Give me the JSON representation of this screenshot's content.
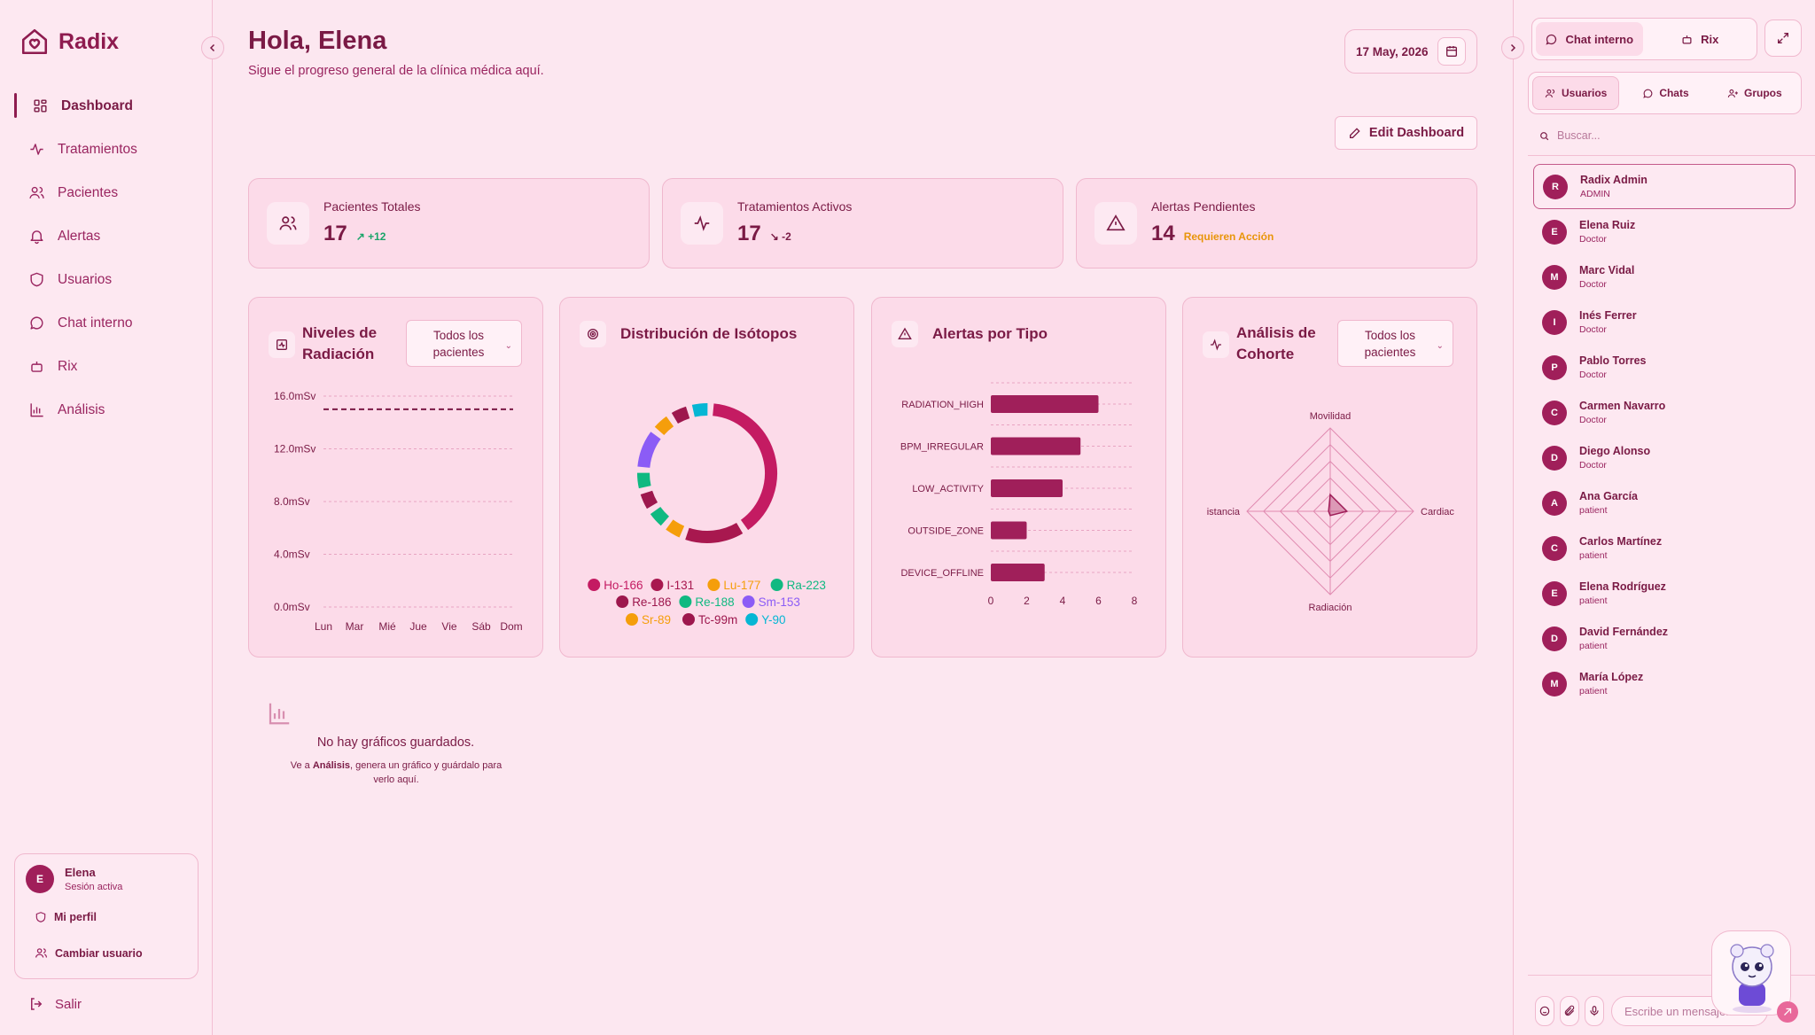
{
  "app": {
    "name": "Radix"
  },
  "nav": [
    {
      "label": "Dashboard",
      "icon": "grid-icon",
      "active": true
    },
    {
      "label": "Tratamientos",
      "icon": "activity-icon"
    },
    {
      "label": "Pacientes",
      "icon": "users-icon"
    },
    {
      "label": "Alertas",
      "icon": "bell-icon"
    },
    {
      "label": "Usuarios",
      "icon": "shield-icon"
    },
    {
      "label": "Chat interno",
      "icon": "chat-icon"
    },
    {
      "label": "Rix",
      "icon": "bot-icon"
    },
    {
      "label": "Análisis",
      "icon": "bar-chart-icon"
    }
  ],
  "session": {
    "initial": "E",
    "name": "Elena",
    "status": "Sesión activa",
    "profile": "Mi perfil",
    "switch": "Cambiar usuario",
    "logout": "Salir"
  },
  "header": {
    "greeting": "Hola, Elena",
    "subtitle": "Sigue el progreso general de la clínica médica aquí.",
    "date": "17 May, 2026",
    "edit": "Edit Dashboard"
  },
  "stats": [
    {
      "label": "Pacientes Totales",
      "value": "17",
      "delta": "+12",
      "delta_color": "#1aa56a"
    },
    {
      "label": "Tratamientos Activos",
      "value": "17",
      "delta": "-2",
      "delta_color": "#7a1a45"
    },
    {
      "label": "Alertas Pendientes",
      "value": "14",
      "delta": "Requieren Acción",
      "delta_color": "#e8950a"
    }
  ],
  "charts": {
    "radiation": {
      "title": "Niveles de Radiación",
      "filter": "Todos los pacientes"
    },
    "isotopes": {
      "title": "Distribución de Isótopos"
    },
    "alerts": {
      "title": "Alertas por Tipo"
    },
    "cohort": {
      "title": "Análisis de Cohorte",
      "filter": "Todos los pacientes"
    }
  },
  "chart_data": [
    {
      "type": "line",
      "y_ticks": [
        "16.0mSv",
        "12.0mSv",
        "8.0mSv",
        "4.0mSv",
        "0.0mSv"
      ],
      "ylim": [
        0,
        16
      ],
      "categories": [
        "Lun",
        "Mar",
        "Mié",
        "Jue",
        "Vie",
        "Sáb",
        "Dom"
      ],
      "threshold": 15,
      "grid": true
    },
    {
      "type": "pie",
      "donut": true,
      "series": [
        {
          "name": "Ho-166",
          "value": 8,
          "color": "#c41b62"
        },
        {
          "name": "I-131",
          "value": 3,
          "color": "#a8184f"
        },
        {
          "name": "Lu-177",
          "value": 1,
          "color": "#f59e0b"
        },
        {
          "name": "Ra-223",
          "value": 1,
          "color": "#10b981"
        },
        {
          "name": "Re-186",
          "value": 1,
          "color": "#9d174d"
        },
        {
          "name": "Re-188",
          "value": 1,
          "color": "#10b981"
        },
        {
          "name": "Sm-153",
          "value": 2,
          "color": "#8b5cf6"
        },
        {
          "name": "Sr-89",
          "value": 1,
          "color": "#f59e0b"
        },
        {
          "name": "Tc-99m",
          "value": 1,
          "color": "#9d174d"
        },
        {
          "name": "Y-90",
          "value": 1,
          "color": "#06b6d4"
        }
      ],
      "legend_rows": [
        [
          0,
          1,
          2,
          3
        ],
        [
          4,
          5,
          6
        ],
        [
          7,
          8,
          9
        ]
      ]
    },
    {
      "type": "bar",
      "orientation": "horizontal",
      "categories": [
        "RADIATION_HIGH",
        "BPM_IRREGULAR",
        "LOW_ACTIVITY",
        "OUTSIDE_ZONE",
        "DEVICE_OFFLINE"
      ],
      "values": [
        6,
        5,
        4,
        2,
        3
      ],
      "xlim": [
        0,
        8
      ],
      "x_ticks": [
        "0",
        "2",
        "4",
        "6",
        "8"
      ]
    },
    {
      "type": "radar",
      "axes": [
        "Movilidad",
        "Cardiac",
        "Radiación",
        "istancia"
      ],
      "values": [
        0.2,
        0.2,
        0.05,
        0.02
      ]
    }
  ],
  "empty": {
    "title": "No hay gráficos guardados.",
    "pre": "Ve a ",
    "strong": "Análisis",
    "post": ", genera un gráfico y guárdalo para verlo aquí."
  },
  "chat": {
    "tab_chat": "Chat interno",
    "tab_rix": "Rix",
    "tab_users": "Usuarios",
    "tab_chats": "Chats",
    "tab_groups": "Grupos",
    "search_placeholder": "Buscar...",
    "message_placeholder": "Escribe un mensaje...",
    "users": [
      {
        "initial": "R",
        "name": "Radix Admin",
        "role": "ADMIN",
        "selected": true
      },
      {
        "initial": "E",
        "name": "Elena Ruiz",
        "role": "Doctor"
      },
      {
        "initial": "M",
        "name": "Marc Vidal",
        "role": "Doctor"
      },
      {
        "initial": "I",
        "name": "Inés Ferrer",
        "role": "Doctor"
      },
      {
        "initial": "P",
        "name": "Pablo Torres",
        "role": "Doctor"
      },
      {
        "initial": "C",
        "name": "Carmen Navarro",
        "role": "Doctor"
      },
      {
        "initial": "D",
        "name": "Diego Alonso",
        "role": "Doctor"
      },
      {
        "initial": "A",
        "name": "Ana García",
        "role": "patient"
      },
      {
        "initial": "C",
        "name": "Carlos Martínez",
        "role": "patient"
      },
      {
        "initial": "E",
        "name": "Elena Rodríguez",
        "role": "patient"
      },
      {
        "initial": "D",
        "name": "David Fernández",
        "role": "patient"
      },
      {
        "initial": "M",
        "name": "María López",
        "role": "patient"
      }
    ]
  }
}
